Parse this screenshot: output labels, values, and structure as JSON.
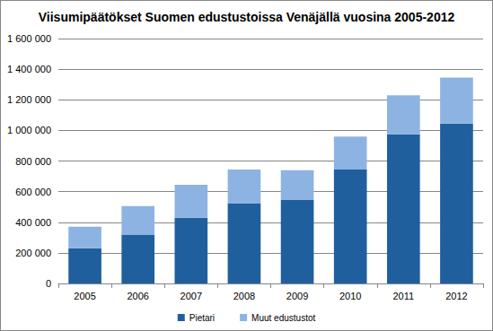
{
  "chart_data": {
    "type": "bar",
    "title": "Viisumipäätökset Suomen edustustoissa Venäjällä vuosina 2005-2012",
    "stacked": true,
    "grid": true,
    "legend": "bottom",
    "categories": [
      "2005",
      "2006",
      "2007",
      "2008",
      "2009",
      "2010",
      "2011",
      "2012"
    ],
    "series": [
      {
        "name": "Pietari",
        "color": "#1f5f9e",
        "values": [
          230000,
          320000,
          430000,
          525000,
          545000,
          745000,
          975000,
          1045000
        ]
      },
      {
        "name": "Muut edustustot",
        "color": "#8db3e2",
        "values": [
          140000,
          185000,
          215000,
          220000,
          195000,
          215000,
          255000,
          300000
        ]
      }
    ],
    "ylim": [
      0,
      1600000
    ],
    "yticks": [
      0,
      {
        "value": 200000,
        "label": "200 000"
      },
      {
        "value": 400000,
        "label": "400 000"
      },
      {
        "value": 600000,
        "label": "600 000"
      },
      {
        "value": 800000,
        "label": "800 000"
      },
      {
        "value": 1000000,
        "label": "1 000 000"
      },
      {
        "value": 1200000,
        "label": "1 200 000"
      },
      {
        "value": 1400000,
        "label": "1 400 000"
      },
      {
        "value": 1600000,
        "label": "1 600 000"
      }
    ]
  }
}
